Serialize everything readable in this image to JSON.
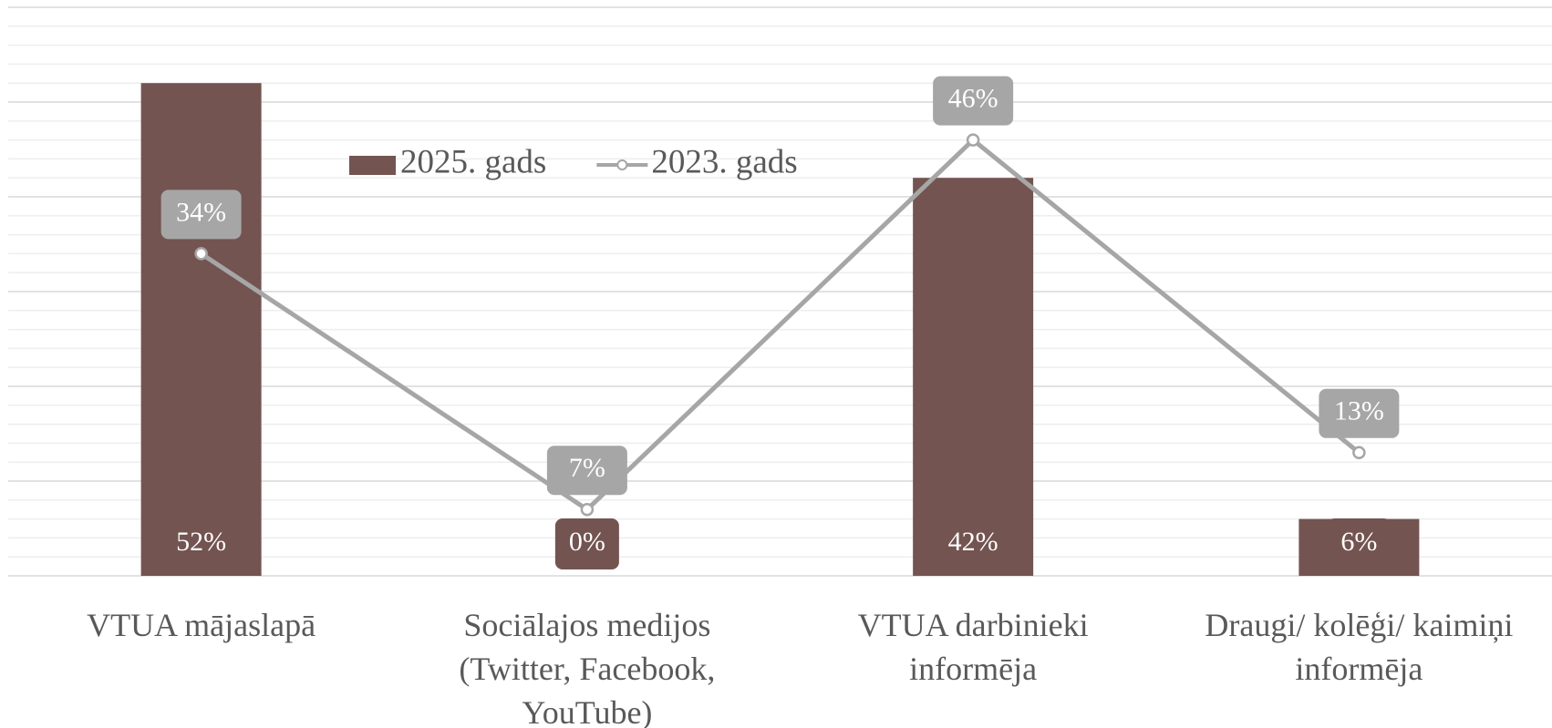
{
  "chart_data": {
    "type": "bar",
    "categories": [
      "VTUA mājaslapā",
      "Sociālajos medijos (Twitter, Facebook, YouTube)",
      "VTUA darbinieki informēja",
      "Draugi/ kolēģi/ kaimiņi informēja"
    ],
    "series": [
      {
        "name": "2025. gads",
        "type": "bar",
        "color": "#735451",
        "values": [
          52,
          0,
          42,
          6
        ],
        "value_labels": [
          "52%",
          "0%",
          "42%",
          "6%"
        ]
      },
      {
        "name": "2023. gads",
        "type": "line",
        "color": "#a6a6a6",
        "values": [
          34,
          7,
          46,
          13
        ],
        "value_labels": [
          "34%",
          "7%",
          "46%",
          "13%"
        ]
      }
    ],
    "ylim": [
      0,
      60
    ],
    "yticks": [
      0,
      10,
      20,
      30,
      40,
      50,
      60
    ],
    "grid": true,
    "legend": "top"
  }
}
